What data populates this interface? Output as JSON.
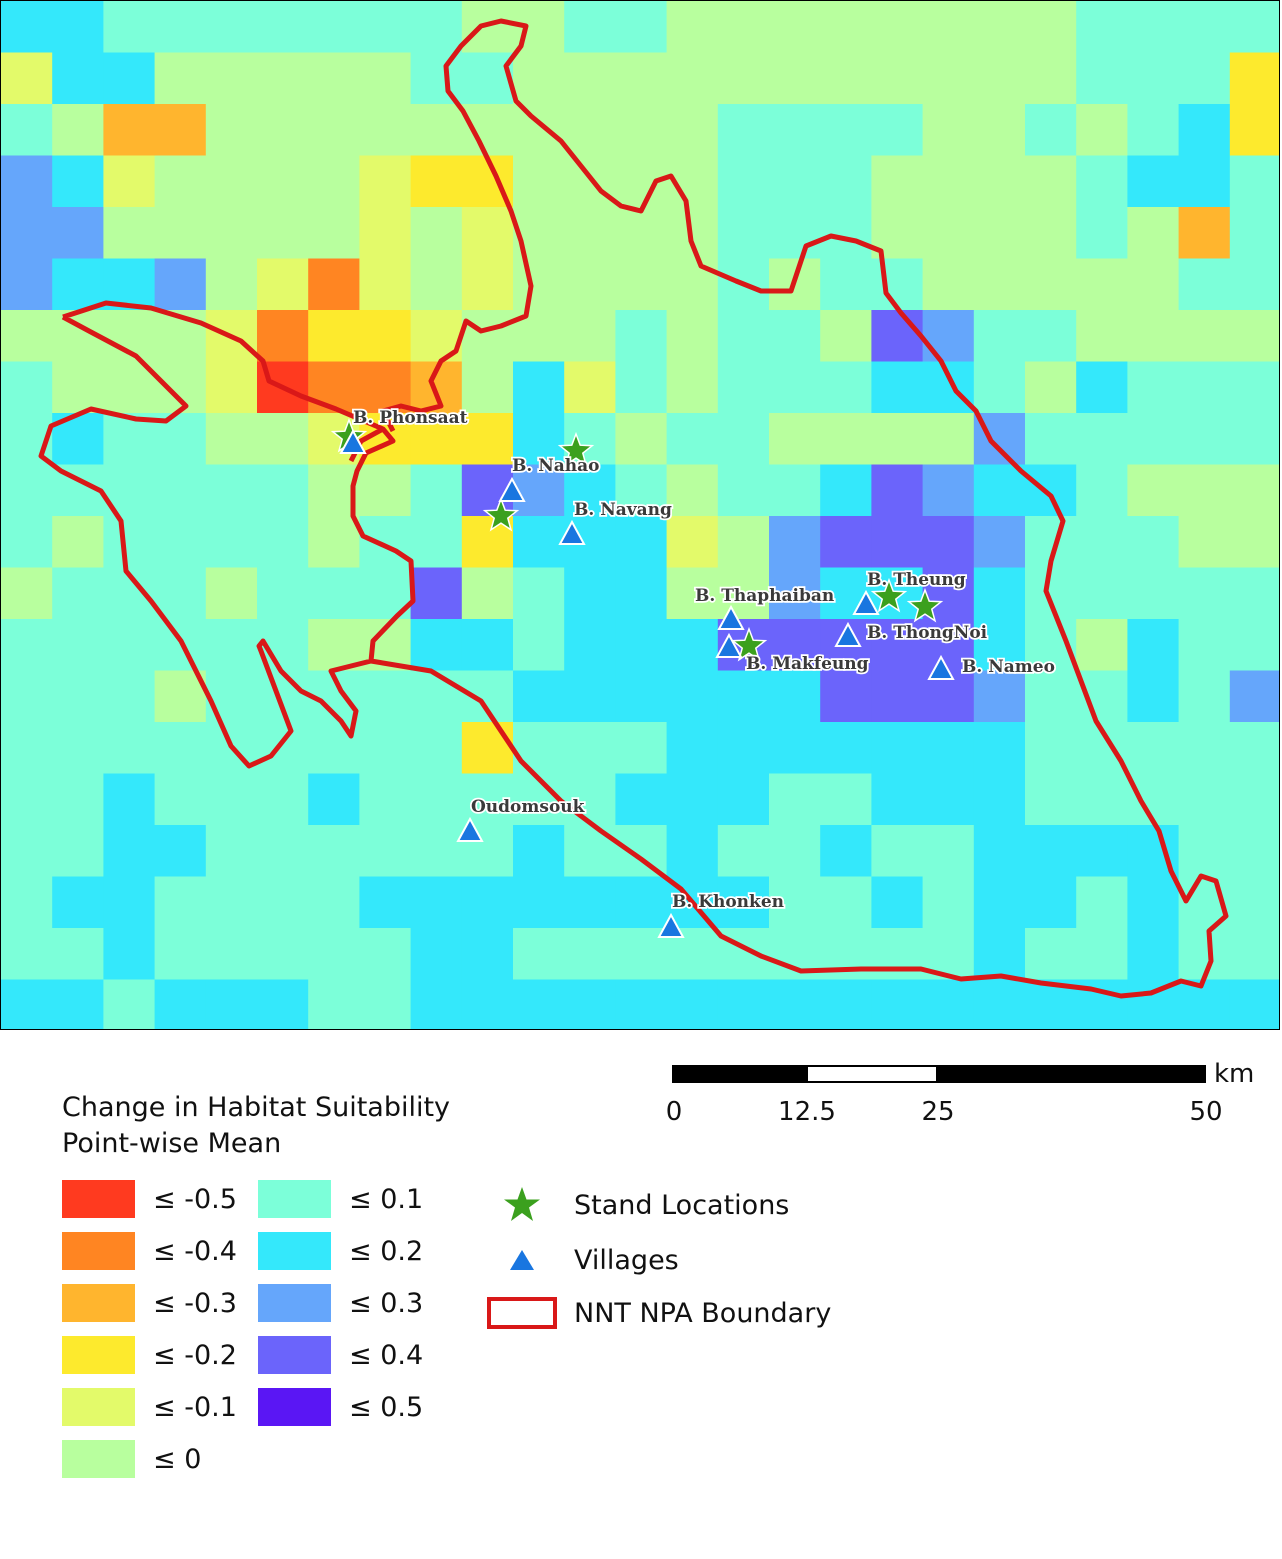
{
  "legend": {
    "title_line1": "Change in Habitat Suitability",
    "title_line2": "Point-wise Mean",
    "classes": [
      {
        "label": "≤ -0.5",
        "color": "#ff3a1f"
      },
      {
        "label": "≤ -0.4",
        "color": "#ff8522"
      },
      {
        "label": "≤ -0.3",
        "color": "#ffb52e"
      },
      {
        "label": "≤ -0.2",
        "color": "#fdea2d"
      },
      {
        "label": "≤ -0.1",
        "color": "#e3fa6a"
      },
      {
        "label": "≤ 0",
        "color": "#b8ff9e"
      },
      {
        "label": "≤ 0.1",
        "color": "#7cffd9"
      },
      {
        "label": "≤ 0.2",
        "color": "#34e8fb"
      },
      {
        "label": "≤ 0.3",
        "color": "#65a6fb"
      },
      {
        "label": "≤ 0.4",
        "color": "#6b64fb"
      },
      {
        "label": "≤ 0.5",
        "color": "#5a16f4"
      }
    ]
  },
  "symbols": {
    "stands": {
      "label": "Stand Locations",
      "icon": "star-icon",
      "color": "#3ba01e"
    },
    "villages": {
      "label": "Villages",
      "icon": "triangle-icon",
      "color": "#1976e0"
    },
    "boundary": {
      "label": "NNT NPA Boundary",
      "icon": "boundary-box-icon",
      "color": "#d91818"
    }
  },
  "scalebar": {
    "unit": "km",
    "ticks": [
      "0",
      "12.5",
      "25",
      "50"
    ]
  },
  "villages": [
    {
      "name": "B. Phonsaat"
    },
    {
      "name": "B. Nahao"
    },
    {
      "name": "B. Navang"
    },
    {
      "name": "B. Thaphaiban"
    },
    {
      "name": "B. Theung"
    },
    {
      "name": "B. ThongNoi"
    },
    {
      "name": "B. Makfeung"
    },
    {
      "name": "B. Nameo"
    },
    {
      "name": "Oudomsouk"
    },
    {
      "name": "B. Khonken"
    }
  ]
}
